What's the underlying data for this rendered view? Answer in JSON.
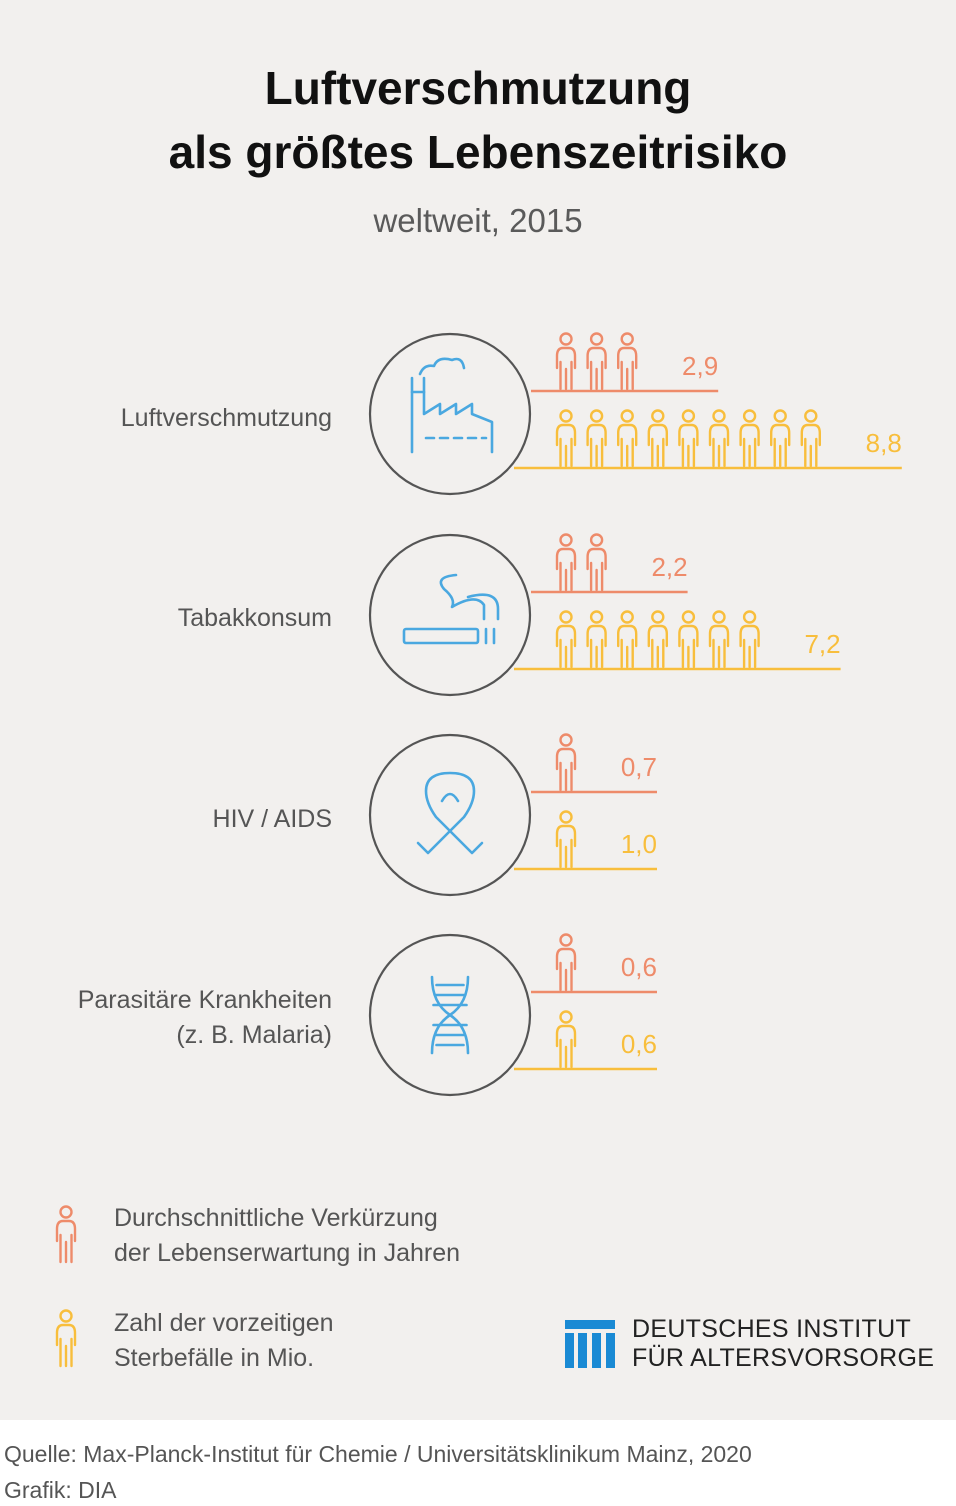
{
  "header": {
    "title_line1": "Luftverschmutzung",
    "title_line2": "als größtes Lebenszeitrisiko",
    "subtitle": "weltweit, 2015"
  },
  "colors": {
    "background": "#f2f0ee",
    "life_years": "#ee8b6a",
    "deaths": "#f8be3c",
    "icon": "#4aa8e0",
    "circle": "#555555",
    "logo": "#1a8ad4"
  },
  "chart_data": {
    "type": "pictogram-bar",
    "title": "Luftverschmutzung als größtes Lebenszeitrisiko",
    "subtitle": "weltweit, 2015",
    "categories": [
      "Luftverschmutzung",
      "Tabakkonsum",
      "HIV / AIDS",
      "Parasitäre Krankheiten (z. B. Malaria)"
    ],
    "category_icons": [
      "factory-icon",
      "cigarette-icon",
      "ribbon-icon",
      "dna-icon"
    ],
    "series": [
      {
        "name": "Durchschnittliche Verkürzung der Lebenserwartung in Jahren",
        "color": "#ee8b6a",
        "values": [
          2.9,
          2.2,
          0.7,
          0.6
        ],
        "labels": [
          "2,9",
          "2,2",
          "0,7",
          "0,6"
        ]
      },
      {
        "name": "Zahl der vorzeitigen Sterbefälle in Mio.",
        "color": "#f8be3c",
        "values": [
          8.8,
          7.2,
          1.0,
          0.6
        ],
        "labels": [
          "8,8",
          "7,2",
          "1,0",
          "0,6"
        ]
      }
    ]
  },
  "rows": [
    {
      "label_lines": [
        "Luftverschmutzung"
      ]
    },
    {
      "label_lines": [
        "Tabakkonsum"
      ]
    },
    {
      "label_lines": [
        "HIV / AIDS"
      ]
    },
    {
      "label_lines": [
        "Parasitäre Krankheiten",
        "(z. B. Malaria)"
      ]
    }
  ],
  "legend": {
    "items": [
      {
        "line1": "Durchschnittliche Verkürzung",
        "line2": "der Lebenserwartung in Jahren",
        "icon": "person-icon",
        "color": "#ee8b6a"
      },
      {
        "line1": "Zahl der vorzeitigen",
        "line2": "Sterbefälle in Mio.",
        "icon": "person-icon",
        "color": "#f8be3c"
      }
    ]
  },
  "logo": {
    "line1": "DEUTSCHES INSTITUT",
    "line2": "FÜR ALTERSVORSORGE"
  },
  "footer": {
    "source": "Quelle: Max-Planck-Institut für Chemie / Universitätsklinikum Mainz, 2020",
    "credit": "Grafik: DIA"
  }
}
